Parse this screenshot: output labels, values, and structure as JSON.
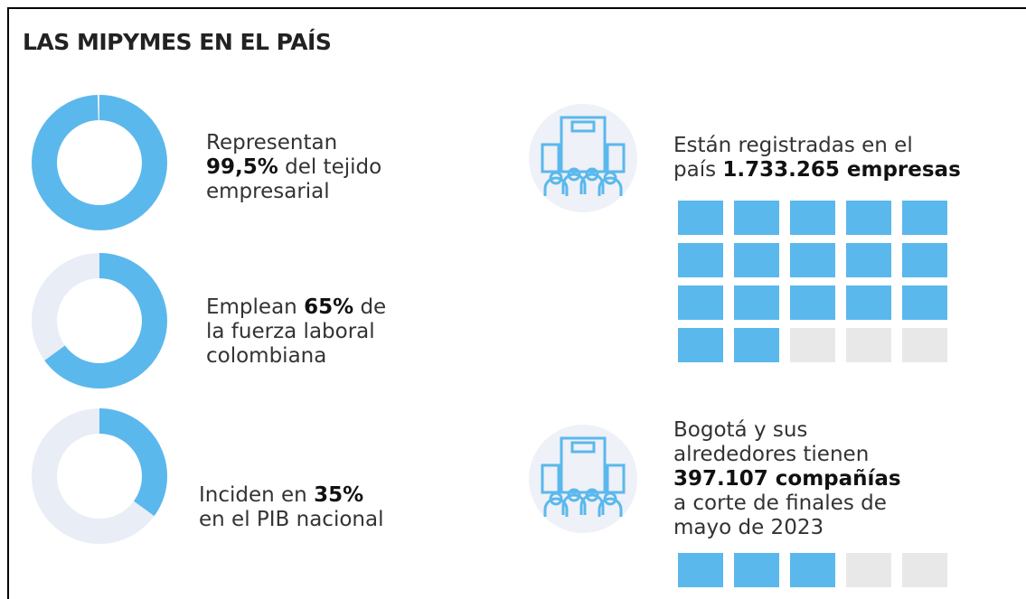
{
  "title": "LAS MIPYMES EN EL PAÍS",
  "stats": [
    {
      "pre": "Representan",
      "value": 99.5,
      "value_label": "99,5%",
      "post": "del tejido",
      "post2": "empresarial"
    },
    {
      "pre": "Emplean",
      "value": 65,
      "value_label": "65%",
      "post": "de",
      "line2": "la fuerza laboral",
      "line3": "colombiana"
    },
    {
      "pre": "Inciden en",
      "value": 35,
      "value_label": "35%",
      "line2": "en el PIB nacional"
    }
  ],
  "facts": [
    {
      "line1": "Están registradas en el",
      "pre": "país",
      "bold": "1.733.265 empresas"
    },
    {
      "line1": "Bogotá y sus",
      "line2": "alrededores tienen",
      "bold": "397.107 compañías",
      "line4": "a corte de finales de",
      "line5": "mayo de 2023"
    }
  ],
  "waffles": [
    {
      "filled": 17,
      "total": 20,
      "columns": 5
    },
    {
      "filled": 3,
      "total": 5,
      "columns": 5
    }
  ],
  "colors": {
    "fill": "#5bb8ec",
    "track": "#e9edf6",
    "empty": "#e8e8e8"
  }
}
